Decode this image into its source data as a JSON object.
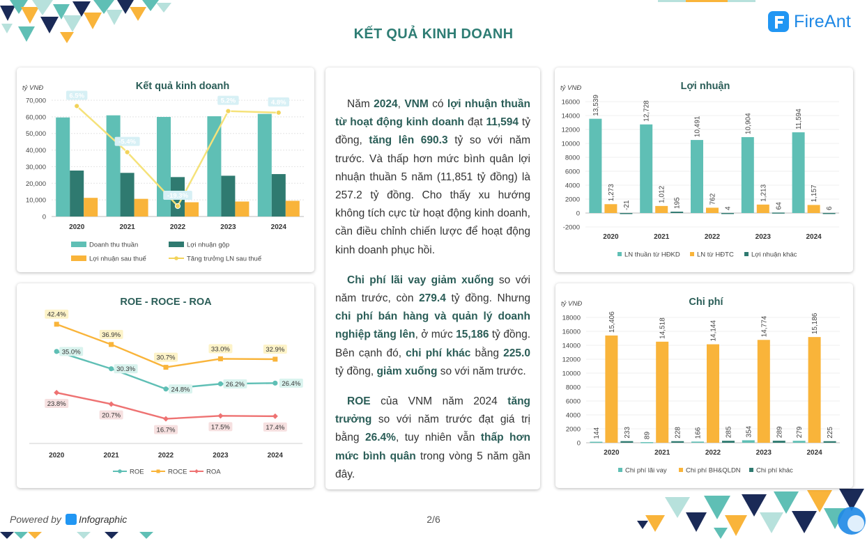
{
  "page": {
    "title": "KẾT QUẢ KINH DOANH",
    "page_number": "2/6"
  },
  "brand": {
    "name": "FireAnt",
    "color": "#1e88e5",
    "accent": "#2e7d74"
  },
  "footer": {
    "powered_by": "Powered by",
    "product": "Infographic"
  },
  "narrative": {
    "p1": [
      {
        "t": "Năm "
      },
      {
        "t": "2024",
        "b": 1
      },
      {
        "t": ", "
      },
      {
        "t": "VNM",
        "b": 1
      },
      {
        "t": " có "
      },
      {
        "t": "lợi nhuận thuần từ hoạt động kinh doanh",
        "b": 1
      },
      {
        "t": " đạt "
      },
      {
        "t": "11,594",
        "b": 1
      },
      {
        "t": " tỷ đồng, "
      },
      {
        "t": "tăng lên 690.3",
        "b": 1
      },
      {
        "t": " tỷ so với năm trước. Và thấp hơn mức bình quân lợi nhuận thuần 5 năm (11,851 tỷ đồng) là 257.2 tỷ đồng. Cho thấy xu hướng không tích cực từ hoạt động kinh doanh, cần điều chỉnh chiến lược để hoạt động kinh doanh phục hồi."
      }
    ],
    "p2": [
      {
        "t": "Chi phí lãi vay giảm xuống",
        "b": 1
      },
      {
        "t": " so với năm trước, còn "
      },
      {
        "t": "279.4",
        "b": 1
      },
      {
        "t": " tỷ đồng. Nhưng "
      },
      {
        "t": "chi phí bán hàng và quản lý doanh nghiệp tăng lên",
        "b": 1
      },
      {
        "t": ", ở mức "
      },
      {
        "t": "15,186",
        "b": 1
      },
      {
        "t": " tỷ đồng. Bên cạnh đó, "
      },
      {
        "t": "chi phí khác",
        "b": 1
      },
      {
        "t": " bằng "
      },
      {
        "t": "225.0",
        "b": 1
      },
      {
        "t": " tỷ đồng, "
      },
      {
        "t": "giảm xuống",
        "b": 1
      },
      {
        "t": " so với năm trước."
      }
    ],
    "p3": [
      {
        "t": "ROE",
        "b": 1
      },
      {
        "t": " của VNM năm 2024 "
      },
      {
        "t": "tăng trưởng",
        "b": 1
      },
      {
        "t": " so với năm trước đạt giá trị bằng "
      },
      {
        "t": "26.4%",
        "b": 1
      },
      {
        "t": ", tuy nhiên vẫn "
      },
      {
        "t": "thấp hơn mức bình quân",
        "b": 1
      },
      {
        "t": " trong vòng 5 năm gần đây."
      }
    ]
  },
  "chart_data": [
    {
      "id": "kqkd",
      "type": "bar",
      "title": "Kết quả kinh doanh",
      "ylabel": "tỷ VNĐ",
      "categories": [
        "2020",
        "2021",
        "2022",
        "2023",
        "2024"
      ],
      "ylim": [
        0,
        70000
      ],
      "yticks": [
        "0",
        "10,000",
        "20,000",
        "30,000",
        "40,000",
        "50,000",
        "60,000",
        "70,000"
      ],
      "series": [
        {
          "name": "Doanh thu thuần",
          "values": [
            59636,
            60919,
            59956,
            60369,
            61783
          ],
          "color": "#5fbfb5"
        },
        {
          "name": "Lợi nhuận gộp",
          "values": [
            27668,
            26278,
            23738,
            24549,
            25544
          ],
          "color": "#2f7a70"
        },
        {
          "name": "Lợi nhuận sau thuế",
          "values": [
            11236,
            10633,
            8578,
            9019,
            9453
          ],
          "color": "#f9b43a"
        }
      ],
      "line": {
        "name": "Tăng trưởng LN sau thuế",
        "values": [
          6.5,
          -5.4,
          -19.3,
          5.2,
          4.8
        ],
        "labels": [
          "6.5%",
          "-5.4%",
          "-19.3%",
          "5.2%",
          "4.8%"
        ],
        "ylim": [
          -22,
          8
        ],
        "color": "#f5e27a"
      }
    },
    {
      "id": "profit",
      "type": "bar",
      "title": "Lợi nhuận",
      "ylabel": "tỷ VNĐ",
      "categories": [
        "2020",
        "2021",
        "2022",
        "2023",
        "2024"
      ],
      "ylim": [
        -2000,
        16000
      ],
      "yticks": [
        "-2000",
        "0",
        "2000",
        "4000",
        "6000",
        "8000",
        "10000",
        "12000",
        "14000",
        "16000"
      ],
      "series": [
        {
          "name": "LN thuần từ HĐKD",
          "values": [
            13539,
            12728,
            10491,
            10904,
            11594
          ],
          "labels": [
            "13,539",
            "12,728",
            "10,491",
            "10,904",
            "11,594"
          ],
          "color": "#5fbfb5"
        },
        {
          "name": "LN từ HĐTC",
          "values": [
            1273,
            1012,
            762,
            1213,
            1157
          ],
          "labels": [
            "1,273",
            "1,012",
            "762",
            "1,213",
            "1,157"
          ],
          "color": "#f9b43a"
        },
        {
          "name": "Lợi nhuận khác",
          "values": [
            -21,
            195,
            4,
            64,
            6
          ],
          "labels": [
            "-21",
            "195",
            "4",
            "64",
            "6"
          ],
          "color": "#2f7a70"
        }
      ]
    },
    {
      "id": "ratios",
      "type": "line",
      "title": "ROE - ROCE - ROA",
      "categories": [
        "2020",
        "2021",
        "2022",
        "2023",
        "2024"
      ],
      "ylim": [
        10,
        45
      ],
      "series": [
        {
          "name": "ROE",
          "values": [
            35.0,
            30.3,
            24.8,
            26.2,
            26.4
          ],
          "labels": [
            "35.0%",
            "30.3%",
            "24.8%",
            "26.2%",
            "26.4%"
          ],
          "color": "#5fbfb5",
          "marker": "circle",
          "label_pos": "right"
        },
        {
          "name": "ROCE",
          "values": [
            42.4,
            36.9,
            30.7,
            33.0,
            32.9
          ],
          "labels": [
            "42.4%",
            "36.9%",
            "30.7%",
            "33.0%",
            "32.9%"
          ],
          "color": "#f9b43a",
          "marker": "square",
          "label_pos": "above"
        },
        {
          "name": "ROA",
          "values": [
            23.8,
            20.7,
            16.7,
            17.5,
            17.4
          ],
          "labels": [
            "23.8%",
            "20.7%",
            "16.7%",
            "17.5%",
            "17.4%"
          ],
          "color": "#ee7272",
          "marker": "diamond",
          "label_pos": "below"
        }
      ]
    },
    {
      "id": "cost",
      "type": "bar",
      "title": "Chi phí",
      "ylabel": "tỷ VNĐ",
      "categories": [
        "2020",
        "2021",
        "2022",
        "2023",
        "2024"
      ],
      "ylim": [
        0,
        18000
      ],
      "yticks": [
        "0",
        "2000",
        "4000",
        "6000",
        "8000",
        "10000",
        "12000",
        "14000",
        "16000",
        "18000"
      ],
      "series": [
        {
          "name": "Chi phí lãi vay",
          "values": [
            144,
            89,
            166,
            354,
            279
          ],
          "labels": [
            "144",
            "89",
            "166",
            "354",
            "279"
          ],
          "color": "#5fbfb5"
        },
        {
          "name": "Chi phí BH&QLDN",
          "values": [
            15406,
            14518,
            14144,
            14774,
            15186
          ],
          "labels": [
            "15,406",
            "14,518",
            "14,144",
            "14,774",
            "15,186"
          ],
          "color": "#f9b43a"
        },
        {
          "name": "Chi phí khác",
          "values": [
            233,
            228,
            285,
            289,
            225
          ],
          "labels": [
            "233",
            "228",
            "285",
            "289",
            "225"
          ],
          "color": "#2f7a70"
        }
      ]
    }
  ]
}
